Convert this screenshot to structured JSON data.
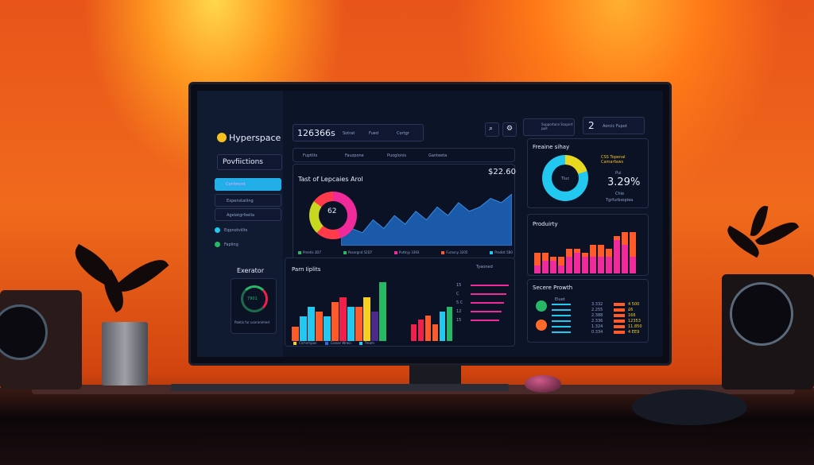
{
  "dashboard": {
    "brand": "Hyperspace",
    "sidebar": {
      "section": "Povfiictions",
      "items": [
        "Contmont",
        "Expenstailing",
        "Agelatgrfoelia"
      ],
      "links": [
        "Eqpnotviilts",
        "Fapling"
      ],
      "widget_title": "Exerator",
      "widget_value": "7901",
      "widget_caption": "Paetis fur ucoranimed"
    },
    "topbar": {
      "counter": "126366s",
      "search": "Sotrat",
      "filter": "Fued",
      "category": "Cortgr",
      "notice": "Supportace Scopnrt ppit",
      "number": "2",
      "notice2": "Aorcic Fupot"
    },
    "tabs": [
      "Fuptlits",
      "Fauzpone",
      "Puoglonis",
      "Ganteeta"
    ],
    "main_chart": {
      "title": "Tast of Lepcaies Arol",
      "value": "$22.60",
      "donut_value": "62",
      "legend": [
        "Preetis 3D7",
        "Pasergnd 52D7",
        "Puttnjy 3393",
        "Furasny 3205",
        "Prodist 5B0"
      ]
    },
    "bar_panel": {
      "title": "Parn Iiplits",
      "right_label": "Tyaoned",
      "legend": [
        "Clchnmpon",
        "Cosser Wreoi",
        "Tream"
      ],
      "rows": [
        "15",
        "C",
        "5 C",
        "12",
        "15"
      ]
    },
    "right_top": {
      "title": "Freaine sihay",
      "value": "3.29%",
      "donut_label": "Tiuc",
      "legend": [
        "CSS Topenal Camarfaws",
        "Pui",
        "Chie",
        "Tgrfurbsspiea"
      ]
    },
    "productivity": {
      "title": "Produirty"
    },
    "growth": {
      "title": "Secere Prowth",
      "label": "Eiuet",
      "values_left": [
        "3.332",
        "2.255",
        "2.388",
        "2.336",
        "1.324",
        "0.334"
      ],
      "values_right": [
        "4 500",
        "£6",
        "166",
        "12353",
        "11.850",
        "4 EE9"
      ]
    }
  },
  "chart_data": [
    {
      "type": "area",
      "values": [
        2,
        4,
        3,
        6,
        4,
        7,
        5,
        8,
        6,
        9,
        7,
        10,
        8,
        9,
        11,
        10,
        12
      ]
    },
    {
      "type": "bar",
      "series": [
        {
          "values": [
            3,
            5,
            7,
            6,
            5,
            8,
            9
          ]
        },
        {
          "values": [
            7,
            7,
            9,
            6,
            12
          ]
        },
        {
          "values": [
            4,
            5,
            6,
            4,
            7,
            8
          ]
        }
      ]
    },
    {
      "type": "bar",
      "series": [
        {
          "values": [
            5,
            5,
            4,
            4,
            6,
            6,
            5,
            7,
            7,
            6,
            9,
            10,
            10
          ]
        },
        {
          "values": [
            2,
            3,
            3,
            2,
            4,
            5,
            4,
            4,
            4,
            4,
            8,
            7,
            4
          ]
        }
      ]
    }
  ],
  "colors": {
    "cyan": "#22c8f0",
    "pink": "#f02a9a",
    "orange": "#ff5a2a",
    "yellow": "#f5d020",
    "green": "#26b865",
    "red": "#f0204a"
  }
}
